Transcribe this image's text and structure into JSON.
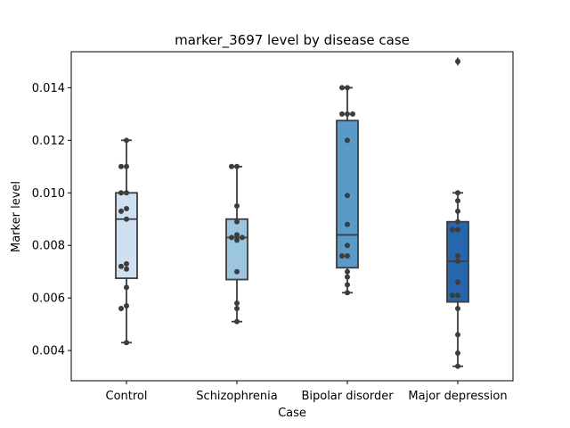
{
  "chart_data": {
    "type": "box",
    "title": "marker_3697 level by disease case",
    "xlabel": "Case",
    "ylabel": "Marker level",
    "ylim": [
      0.00285,
      0.01537
    ],
    "yticks": [
      "0.004",
      "0.006",
      "0.008",
      "0.010",
      "0.012",
      "0.014"
    ],
    "ytick_values": [
      0.004,
      0.006,
      0.008,
      0.01,
      0.012,
      0.014
    ],
    "categories": [
      "Control",
      "Schizophrenia",
      "Bipolar disorder",
      "Major depression"
    ],
    "grid": false,
    "legend": "none",
    "box_colors": [
      "#cfe0f1",
      "#9cc5e0",
      "#5a9ac9",
      "#2666ac"
    ],
    "line_color": "#3d3d3d",
    "point_color": "#3d3d3d",
    "boxes": [
      {
        "q1": 0.00675,
        "median": 0.009,
        "q3": 0.01,
        "whisker_low": 0.0043,
        "whisker_high": 0.012,
        "fliers": []
      },
      {
        "q1": 0.0067,
        "median": 0.0083,
        "q3": 0.009,
        "whisker_low": 0.0051,
        "whisker_high": 0.011,
        "fliers": []
      },
      {
        "q1": 0.00715,
        "median": 0.0084,
        "q3": 0.01275,
        "whisker_low": 0.0062,
        "whisker_high": 0.014,
        "fliers": []
      },
      {
        "q1": 0.00585,
        "median": 0.0074,
        "q3": 0.0089,
        "whisker_low": 0.0034,
        "whisker_high": 0.01,
        "fliers": [
          0.015
        ]
      }
    ],
    "points": [
      [
        0.012,
        0.011,
        0.011,
        0.01,
        0.01,
        0.0094,
        0.0093,
        0.009,
        0.0073,
        0.0072,
        0.0071,
        0.0064,
        0.0057,
        0.0056,
        0.0043
      ],
      [
        0.011,
        0.011,
        0.0095,
        0.0089,
        0.0084,
        0.0083,
        0.0083,
        0.0082,
        0.007,
        0.0058,
        0.0056,
        0.0051
      ],
      [
        0.014,
        0.014,
        0.013,
        0.013,
        0.013,
        0.012,
        0.0099,
        0.0088,
        0.008,
        0.0076,
        0.0076,
        0.007,
        0.0068,
        0.0065,
        0.0062
      ],
      [
        0.015,
        0.01,
        0.0097,
        0.0093,
        0.0089,
        0.0086,
        0.0086,
        0.0076,
        0.0074,
        0.0066,
        0.0061,
        0.0061,
        0.0056,
        0.0046,
        0.0039,
        0.0034
      ]
    ]
  }
}
